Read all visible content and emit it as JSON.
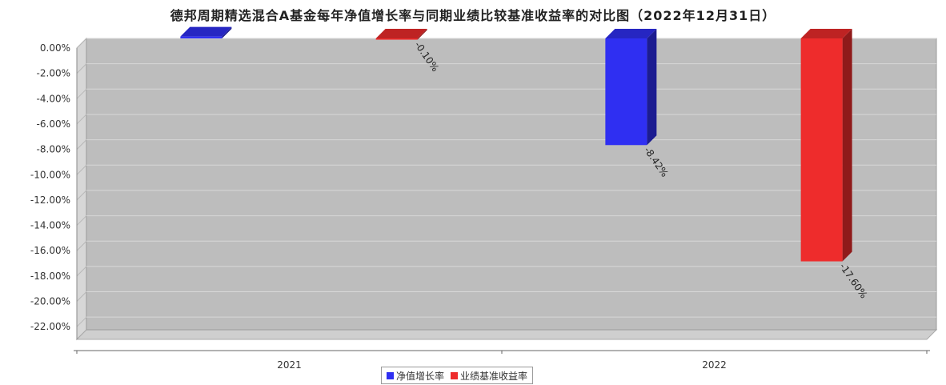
{
  "chart_data": {
    "type": "bar",
    "title": "德邦周期精选混合A基金每年净值增长率与同期业绩比较基准收益率的对比图（2022年12月31日）",
    "categories": [
      "2021",
      "2022"
    ],
    "series": [
      {
        "name": "净值增长率",
        "values": [
          0.15,
          -8.42
        ],
        "labels": [
          "",
          "-8.42%"
        ],
        "color": "#2f2ff2"
      },
      {
        "name": "业绩基准收益率",
        "values": [
          -0.1,
          -17.6
        ],
        "labels": [
          "-0.10%",
          "-17.60%"
        ],
        "color": "#ee2c2c"
      }
    ],
    "ylim": [
      -23,
      0
    ],
    "yticks": [
      0,
      -2,
      -4,
      -6,
      -8,
      -10,
      -12,
      -14,
      -16,
      -18,
      -20,
      -22
    ],
    "ytick_labels": [
      "0.00%",
      "-2.00%",
      "-4.00%",
      "-6.00%",
      "-8.00%",
      "-10.00%",
      "-12.00%",
      "-14.00%",
      "-16.00%",
      "-18.00%",
      "-20.00%",
      "-22.00%"
    ],
    "grid": true,
    "legend_position": "bottom-center"
  }
}
